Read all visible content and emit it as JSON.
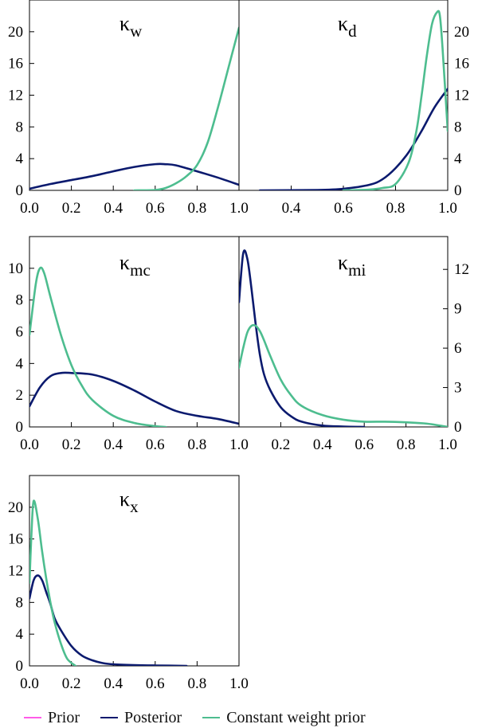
{
  "chart_data": [
    {
      "type": "line",
      "title": "κ",
      "subscript": "w",
      "xlim": [
        0,
        1
      ],
      "ylim": [
        0,
        24
      ],
      "xticks": [
        "0.0",
        "0.2",
        "0.4",
        "0.6",
        "0.8",
        "1.0"
      ],
      "yticks": [
        "0",
        "4",
        "8",
        "12",
        "16",
        "20"
      ],
      "yaxis_side": "left",
      "series": [
        {
          "name": "Posterior",
          "color": "#0b1a6e",
          "x": [
            0.0,
            0.1,
            0.2,
            0.3,
            0.4,
            0.5,
            0.6,
            0.65,
            0.7,
            0.8,
            0.9,
            1.0
          ],
          "y": [
            0.2,
            0.8,
            1.3,
            1.8,
            2.4,
            2.95,
            3.3,
            3.3,
            3.15,
            2.4,
            1.6,
            0.7
          ]
        },
        {
          "name": "Constant weight prior",
          "color": "#4dbd8f",
          "x": [
            0.5,
            0.6,
            0.65,
            0.7,
            0.75,
            0.8,
            0.85,
            0.9,
            0.95,
            1.0
          ],
          "y": [
            0.0,
            0.05,
            0.3,
            0.9,
            1.8,
            3.2,
            6.0,
            10.5,
            15.5,
            20.5
          ]
        }
      ]
    },
    {
      "type": "line",
      "title": "κ",
      "subscript": "d",
      "xlim": [
        0.2,
        1
      ],
      "ylim": [
        0,
        24
      ],
      "xticks": [
        "0.4",
        "0.6",
        "0.8",
        "1.0"
      ],
      "yticks": [
        "0",
        "4",
        "8",
        "12",
        "16",
        "20"
      ],
      "yaxis_side": "right",
      "series": [
        {
          "name": "Posterior",
          "color": "#0b1a6e",
          "x": [
            0.28,
            0.5,
            0.6,
            0.7,
            0.75,
            0.8,
            0.85,
            0.9,
            0.95,
            1.0
          ],
          "y": [
            0.0,
            0.05,
            0.2,
            0.7,
            1.4,
            2.8,
            4.8,
            7.5,
            10.5,
            12.8
          ]
        },
        {
          "name": "Constant weight prior",
          "color": "#4dbd8f",
          "x": [
            0.6,
            0.7,
            0.75,
            0.8,
            0.85,
            0.88,
            0.9,
            0.92,
            0.94,
            0.96,
            0.97,
            0.98,
            1.0
          ],
          "y": [
            0.0,
            0.1,
            0.3,
            0.8,
            3.5,
            7.5,
            12.0,
            17.0,
            21.0,
            22.5,
            22.0,
            18.0,
            7.5
          ]
        }
      ]
    },
    {
      "type": "line",
      "title": "κ",
      "subscript": "mc",
      "xlim": [
        0,
        1
      ],
      "ylim": [
        0,
        12
      ],
      "xticks": [
        "0.0",
        "0.2",
        "0.4",
        "0.6",
        "0.8",
        "1.0"
      ],
      "yticks": [
        "0",
        "2",
        "4",
        "6",
        "8",
        "10"
      ],
      "yaxis_side": "left",
      "series": [
        {
          "name": "Posterior",
          "color": "#0b1a6e",
          "x": [
            0.0,
            0.05,
            0.1,
            0.15,
            0.2,
            0.3,
            0.4,
            0.5,
            0.6,
            0.7,
            0.8,
            0.9,
            1.0
          ],
          "y": [
            1.3,
            2.5,
            3.2,
            3.4,
            3.4,
            3.3,
            2.9,
            2.3,
            1.6,
            1.0,
            0.7,
            0.5,
            0.2
          ]
        },
        {
          "name": "Constant weight prior",
          "color": "#4dbd8f",
          "x": [
            0.0,
            0.03,
            0.05,
            0.07,
            0.1,
            0.15,
            0.2,
            0.25,
            0.3,
            0.4,
            0.5,
            0.6,
            0.65
          ],
          "y": [
            5.8,
            9.0,
            10.0,
            9.7,
            8.2,
            5.8,
            3.9,
            2.6,
            1.7,
            0.7,
            0.25,
            0.05,
            0.0
          ]
        }
      ]
    },
    {
      "type": "line",
      "title": "κ",
      "subscript": "mi",
      "xlim": [
        0,
        1
      ],
      "ylim": [
        0,
        14.5
      ],
      "xticks": [
        "0.2",
        "0.4",
        "0.6",
        "0.8",
        "1.0"
      ],
      "yticks": [
        "0",
        "3",
        "6",
        "9",
        "12"
      ],
      "yaxis_side": "right",
      "series": [
        {
          "name": "Posterior",
          "color": "#0b1a6e",
          "x": [
            0.0,
            0.02,
            0.04,
            0.06,
            0.08,
            0.1,
            0.12,
            0.15,
            0.2,
            0.25,
            0.3,
            0.4,
            0.5,
            0.6
          ],
          "y": [
            9.5,
            13.2,
            12.8,
            10.5,
            7.8,
            5.5,
            4.0,
            2.8,
            1.5,
            0.8,
            0.4,
            0.1,
            0.03,
            0.0
          ]
        },
        {
          "name": "Constant weight prior",
          "color": "#4dbd8f",
          "x": [
            0.0,
            0.02,
            0.04,
            0.06,
            0.08,
            0.1,
            0.12,
            0.15,
            0.2,
            0.25,
            0.3,
            0.4,
            0.5,
            0.6,
            0.7,
            0.8,
            0.9,
            1.0
          ],
          "y": [
            4.5,
            6.0,
            7.2,
            7.7,
            7.7,
            7.3,
            6.6,
            5.4,
            3.6,
            2.4,
            1.6,
            0.9,
            0.55,
            0.4,
            0.4,
            0.35,
            0.25,
            0.0
          ]
        }
      ]
    },
    {
      "type": "line",
      "title": "κ",
      "subscript": "x",
      "xlim": [
        0,
        1
      ],
      "ylim": [
        0,
        24
      ],
      "xticks": [
        "0.0",
        "0.2",
        "0.4",
        "0.6",
        "0.8",
        "1.0"
      ],
      "yticks": [
        "0",
        "4",
        "8",
        "12",
        "16",
        "20"
      ],
      "yaxis_side": "left",
      "series": [
        {
          "name": "Posterior",
          "color": "#0b1a6e",
          "x": [
            0.0,
            0.02,
            0.04,
            0.06,
            0.08,
            0.1,
            0.12,
            0.15,
            0.2,
            0.25,
            0.3,
            0.35,
            0.4,
            0.5,
            0.6,
            0.75
          ],
          "y": [
            8.5,
            10.8,
            11.4,
            10.8,
            9.3,
            7.8,
            6.0,
            4.5,
            2.5,
            1.3,
            0.7,
            0.35,
            0.2,
            0.1,
            0.05,
            0.0
          ]
        },
        {
          "name": "Constant weight prior",
          "color": "#4dbd8f",
          "x": [
            0.0,
            0.01,
            0.02,
            0.04,
            0.06,
            0.08,
            0.1,
            0.12,
            0.15,
            0.18,
            0.22
          ],
          "y": [
            10.5,
            17.0,
            20.8,
            18.5,
            14.5,
            11.0,
            8.0,
            5.5,
            2.8,
            0.9,
            0.0
          ]
        }
      ]
    }
  ],
  "legend": {
    "position": "bottom",
    "items": [
      {
        "label": "Prior",
        "color": "#ff5ce8"
      },
      {
        "label": "Posterior",
        "color": "#0b1a6e"
      },
      {
        "label": "Constant weight prior",
        "color": "#4dbd8f"
      }
    ]
  }
}
